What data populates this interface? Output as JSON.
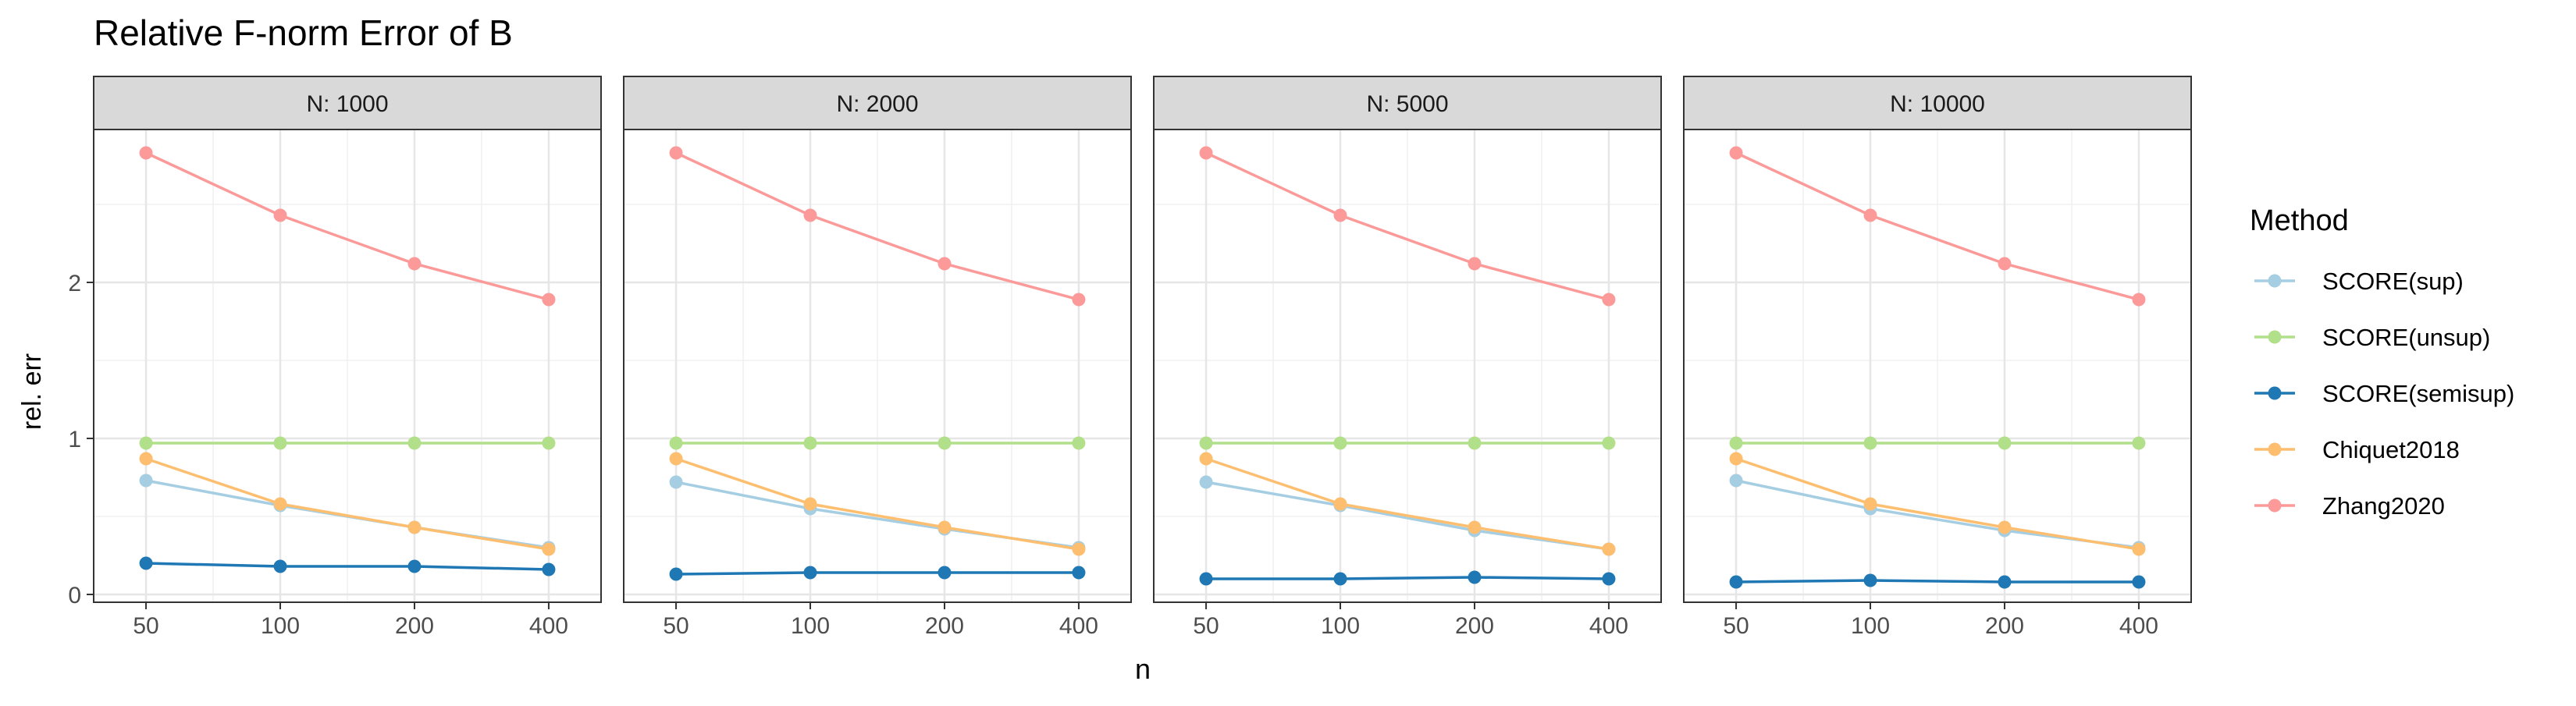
{
  "chart_data": {
    "type": "line",
    "title": "Relative F-norm Error of B",
    "xlabel": "n",
    "ylabel": "rel. err",
    "x": [
      50,
      100,
      200,
      400
    ],
    "x_scale": "log2",
    "ylim": [
      -0.05,
      2.98
    ],
    "yticks": [
      0,
      1,
      2
    ],
    "grid": true,
    "legend_title": "Method",
    "legend_position": "right",
    "series_meta": [
      {
        "name": "SCORE(sup)",
        "color": "#a6cee3"
      },
      {
        "name": "SCORE(unsup)",
        "color": "#b2df8a"
      },
      {
        "name": "SCORE(semisup)",
        "color": "#1f78b4"
      },
      {
        "name": "Chiquet2018",
        "color": "#fdbf6f"
      },
      {
        "name": "Zhang2020",
        "color": "#fb9a99"
      }
    ],
    "panels": [
      {
        "label": "N: 1000",
        "series": [
          {
            "name": "SCORE(sup)",
            "values": [
              0.73,
              0.57,
              0.43,
              0.3
            ]
          },
          {
            "name": "SCORE(unsup)",
            "values": [
              0.97,
              0.97,
              0.97,
              0.97
            ]
          },
          {
            "name": "SCORE(semisup)",
            "values": [
              0.2,
              0.18,
              0.18,
              0.16
            ]
          },
          {
            "name": "Chiquet2018",
            "values": [
              0.87,
              0.58,
              0.43,
              0.29
            ]
          },
          {
            "name": "Zhang2020",
            "values": [
              2.83,
              2.43,
              2.12,
              1.89
            ]
          }
        ]
      },
      {
        "label": "N: 2000",
        "series": [
          {
            "name": "SCORE(sup)",
            "values": [
              0.72,
              0.55,
              0.42,
              0.3
            ]
          },
          {
            "name": "SCORE(unsup)",
            "values": [
              0.97,
              0.97,
              0.97,
              0.97
            ]
          },
          {
            "name": "SCORE(semisup)",
            "values": [
              0.13,
              0.14,
              0.14,
              0.14
            ]
          },
          {
            "name": "Chiquet2018",
            "values": [
              0.87,
              0.58,
              0.43,
              0.29
            ]
          },
          {
            "name": "Zhang2020",
            "values": [
              2.83,
              2.43,
              2.12,
              1.89
            ]
          }
        ]
      },
      {
        "label": "N: 5000",
        "series": [
          {
            "name": "SCORE(sup)",
            "values": [
              0.72,
              0.57,
              0.41,
              0.29
            ]
          },
          {
            "name": "SCORE(unsup)",
            "values": [
              0.97,
              0.97,
              0.97,
              0.97
            ]
          },
          {
            "name": "SCORE(semisup)",
            "values": [
              0.1,
              0.1,
              0.11,
              0.1
            ]
          },
          {
            "name": "Chiquet2018",
            "values": [
              0.87,
              0.58,
              0.43,
              0.29
            ]
          },
          {
            "name": "Zhang2020",
            "values": [
              2.83,
              2.43,
              2.12,
              1.89
            ]
          }
        ]
      },
      {
        "label": "N: 10000",
        "series": [
          {
            "name": "SCORE(sup)",
            "values": [
              0.73,
              0.55,
              0.41,
              0.3
            ]
          },
          {
            "name": "SCORE(unsup)",
            "values": [
              0.97,
              0.97,
              0.97,
              0.97
            ]
          },
          {
            "name": "SCORE(semisup)",
            "values": [
              0.08,
              0.09,
              0.08,
              0.08
            ]
          },
          {
            "name": "Chiquet2018",
            "values": [
              0.87,
              0.58,
              0.43,
              0.29
            ]
          },
          {
            "name": "Zhang2020",
            "values": [
              2.83,
              2.43,
              2.12,
              1.89
            ]
          }
        ]
      }
    ]
  }
}
